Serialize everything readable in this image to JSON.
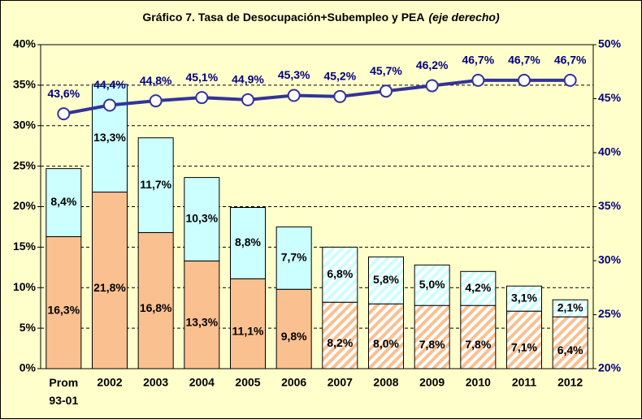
{
  "chart_data": {
    "type": "stacked-bar-line",
    "title": "Gráfico 7. Tasa de Desocupación+Subempleo y PEA",
    "subtitle": "(eje derecho)",
    "categories": [
      "Prom 93-01",
      "2002",
      "2003",
      "2004",
      "2005",
      "2006",
      "2007",
      "2008",
      "2009",
      "2010",
      "2011",
      "2012"
    ],
    "hatched": [
      false,
      false,
      false,
      false,
      false,
      false,
      true,
      true,
      true,
      true,
      true,
      true
    ],
    "series": [
      {
        "type": "bar",
        "color": "#fac090",
        "values": [
          16.3,
          21.8,
          16.8,
          13.3,
          11.1,
          9.8,
          8.2,
          8.0,
          7.8,
          7.8,
          7.1,
          6.4
        ],
        "value_labels": [
          "16,3%",
          "21,8%",
          "16,8%",
          "13,3%",
          "11,1%",
          "9,8%",
          "8,2%",
          "8,0%",
          "7,8%",
          "7,8%",
          "7,1%",
          "6,4%"
        ]
      },
      {
        "type": "bar",
        "color": "#ccffff",
        "values": [
          8.4,
          13.3,
          11.7,
          10.3,
          8.8,
          7.7,
          6.8,
          5.8,
          5.0,
          4.2,
          3.1,
          2.1
        ],
        "value_labels": [
          "8,4%",
          "13,3%",
          "11,7%",
          "10,3%",
          "8,8%",
          "7,7%",
          "6,8%",
          "5,8%",
          "5,0%",
          "4,2%",
          "3,1%",
          "2,1%"
        ]
      },
      {
        "type": "line",
        "axis": "y2",
        "color": "#333399",
        "values": [
          43.6,
          44.4,
          44.8,
          45.1,
          44.9,
          45.3,
          45.2,
          45.7,
          46.2,
          46.7,
          46.7,
          46.7
        ],
        "value_labels": [
          "43,6%",
          "44,4%",
          "44,8%",
          "45,1%",
          "44,9%",
          "45,3%",
          "45,2%",
          "45,7%",
          "46,2%",
          "46,7%",
          "46,7%",
          "46,7%"
        ]
      }
    ],
    "ylim": [
      0,
      40
    ],
    "yticks": [
      {
        "value": 0,
        "label": "0%"
      },
      {
        "value": 5,
        "label": "5%"
      },
      {
        "value": 10,
        "label": "10%"
      },
      {
        "value": 15,
        "label": "15%"
      },
      {
        "value": 20,
        "label": "20%"
      },
      {
        "value": 25,
        "label": "25%"
      },
      {
        "value": 30,
        "label": "30%"
      },
      {
        "value": 35,
        "label": "35%"
      },
      {
        "value": 40,
        "label": "40%"
      }
    ],
    "y2lim": [
      20,
      50
    ],
    "y2ticks": [
      {
        "value": 20,
        "label": "20%"
      },
      {
        "value": 25,
        "label": "25%"
      },
      {
        "value": 30,
        "label": "30%"
      },
      {
        "value": 35,
        "label": "35%"
      },
      {
        "value": 40,
        "label": "40%"
      },
      {
        "value": 45,
        "label": "45%"
      },
      {
        "value": 50,
        "label": "50%"
      }
    ],
    "grid": true
  }
}
